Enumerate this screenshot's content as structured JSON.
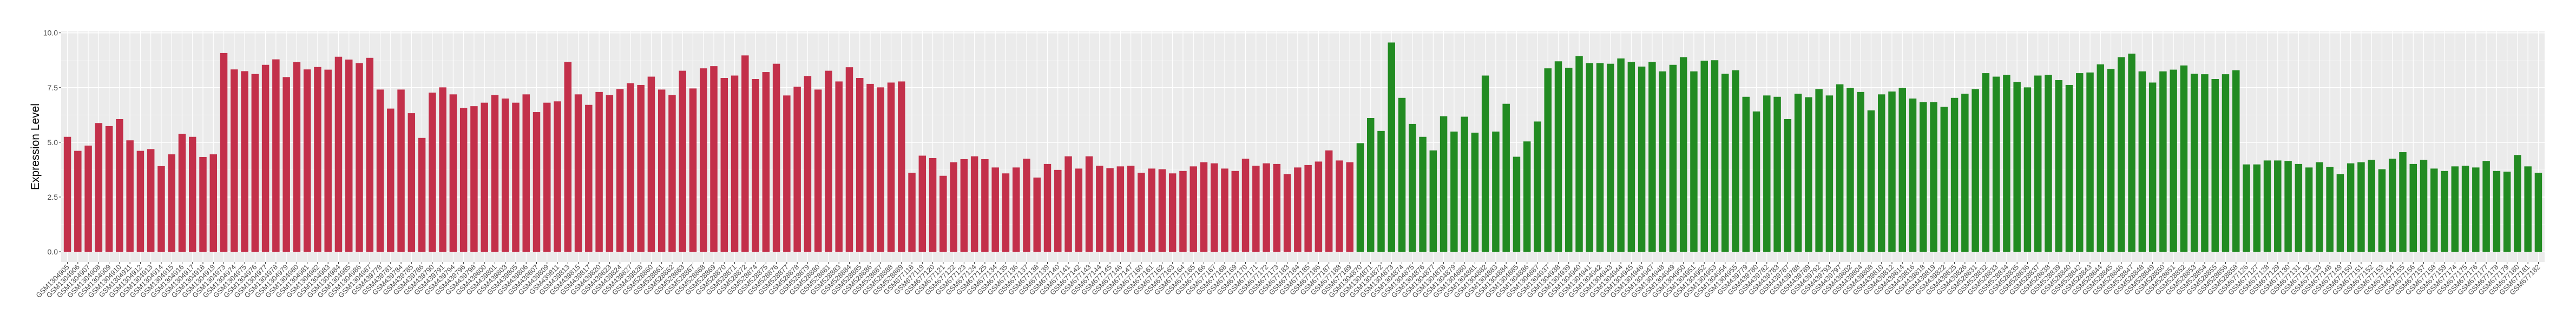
{
  "chart_data": {
    "type": "bar",
    "title": "",
    "xlabel": "",
    "ylabel": "Expression Level",
    "ylim": [
      0,
      10
    ],
    "yticks": [
      "0.0",
      "2.5",
      "5.0",
      "7.5",
      "10.0"
    ],
    "ytick_values": [
      0,
      2.5,
      5,
      7.5,
      10
    ],
    "grid": true,
    "legend": "none",
    "panel_background": "#EBEBEB",
    "groups": [
      {
        "color": "#C3304A",
        "categories": [
          "GSM1304905",
          "GSM1304906",
          "GSM1304907",
          "GSM1304908",
          "GSM1304909",
          "GSM1304910",
          "GSM1304911",
          "GSM1304912",
          "GSM1304913",
          "GSM1304914",
          "GSM1304915",
          "GSM1304916",
          "GSM1304917",
          "GSM1304918",
          "GSM1304919",
          "GSM1304973",
          "GSM1304974",
          "GSM1304975",
          "GSM1304976",
          "GSM1304977",
          "GSM1304978",
          "GSM1304979",
          "GSM1304980",
          "GSM1304981",
          "GSM1304982",
          "GSM1304983",
          "GSM1304984",
          "GSM1304985",
          "GSM1304986",
          "GSM1304987",
          "GSM439778",
          "GSM439781",
          "GSM439784",
          "GSM439785",
          "GSM439786",
          "GSM439790",
          "GSM439791",
          "GSM439794",
          "GSM439796",
          "GSM439798",
          "GSM439800",
          "GSM439801",
          "GSM439803",
          "GSM439805",
          "GSM439806",
          "GSM439807",
          "GSM439809",
          "GSM439811",
          "GSM439813",
          "GSM439815",
          "GSM439817",
          "GSM439820",
          "GSM439823",
          "GSM439824",
          "GSM439827",
          "GSM439828",
          "GSM528860",
          "GSM528861",
          "GSM528862",
          "GSM528863",
          "GSM528867",
          "GSM528868",
          "GSM528869",
          "GSM528870",
          "GSM528871",
          "GSM528872",
          "GSM528874",
          "GSM528875",
          "GSM528876",
          "GSM528877",
          "GSM528878",
          "GSM528879",
          "GSM528880",
          "GSM528881",
          "GSM528883",
          "GSM528884",
          "GSM528885",
          "GSM528886",
          "GSM528887",
          "GSM528888",
          "GSM528889",
          "GSM677118",
          "GSM677119",
          "GSM677120",
          "GSM677121",
          "GSM677122",
          "GSM677123",
          "GSM677124",
          "GSM677125",
          "GSM677134",
          "GSM677135",
          "GSM677136",
          "GSM677137",
          "GSM677138",
          "GSM677139",
          "GSM677140",
          "GSM677141",
          "GSM677142",
          "GSM677143",
          "GSM677144",
          "GSM677145",
          "GSM677146",
          "GSM677147",
          "GSM677160",
          "GSM677161",
          "GSM677162",
          "GSM677163",
          "GSM677164",
          "GSM677165",
          "GSM677166",
          "GSM677167",
          "GSM677168",
          "GSM677169",
          "GSM677170",
          "GSM677171",
          "GSM677172",
          "GSM677173",
          "GSM677183",
          "GSM677184",
          "GSM677185",
          "GSM677186",
          "GSM677187",
          "GSM677188",
          "GSM677189"
        ],
        "values": [
          5.25,
          4.61,
          4.85,
          5.88,
          5.74,
          6.06,
          5.09,
          4.61,
          4.69,
          3.91,
          4.45,
          5.39,
          5.25,
          4.33,
          4.45,
          9.08,
          8.33,
          8.25,
          8.12,
          8.54,
          8.79,
          7.98,
          8.66,
          8.33,
          8.44,
          8.32,
          8.91,
          8.78,
          8.62,
          8.86,
          7.41,
          6.54,
          7.41,
          6.33,
          5.2,
          7.27,
          7.51,
          7.19,
          6.57,
          6.65,
          6.81,
          7.16,
          7.0,
          6.81,
          7.19,
          6.38,
          6.81,
          6.87,
          8.67,
          7.19,
          6.71,
          7.3,
          7.16,
          7.43,
          7.7,
          7.62,
          8.0,
          7.41,
          7.16,
          8.27,
          7.46,
          8.38,
          8.48,
          7.94,
          8.05,
          8.97,
          7.89,
          8.21,
          8.59,
          7.14,
          7.54,
          8.03,
          7.41,
          8.27,
          7.78,
          8.43,
          7.94,
          7.67,
          7.51,
          7.73,
          7.78,
          3.61,
          4.39,
          4.28,
          3.47,
          4.09,
          4.23,
          4.36,
          4.23,
          3.85,
          3.58,
          3.85,
          4.25,
          3.39,
          4.01,
          3.74,
          4.36,
          3.8,
          4.36,
          3.93,
          3.82,
          3.9,
          3.93,
          3.61,
          3.8,
          3.77,
          3.58,
          3.69,
          3.9,
          4.09,
          4.04,
          3.8,
          3.69,
          4.25,
          3.93,
          4.04,
          4.01,
          3.55,
          3.85,
          3.96,
          4.12,
          4.63,
          4.17,
          4.09
        ]
      },
      {
        "color": "#228B22",
        "categories": [
          "GSM1304870",
          "GSM1304871",
          "GSM1304872",
          "GSM1304873",
          "GSM1304874",
          "GSM1304875",
          "GSM1304876",
          "GSM1304877",
          "GSM1304878",
          "GSM1304879",
          "GSM1304880",
          "GSM1304881",
          "GSM1304882",
          "GSM1304883",
          "GSM1304884",
          "GSM1304885",
          "GSM1304886",
          "GSM1304887",
          "GSM1304937",
          "GSM1304938",
          "GSM1304939",
          "GSM1304940",
          "GSM1304941",
          "GSM1304942",
          "GSM1304943",
          "GSM1304944",
          "GSM1304945",
          "GSM1304946",
          "GSM1304947",
          "GSM1304948",
          "GSM1304949",
          "GSM1304950",
          "GSM1304951",
          "GSM1304952",
          "GSM1304953",
          "GSM1304954",
          "GSM1304955",
          "GSM439779",
          "GSM439780",
          "GSM439782",
          "GSM439783",
          "GSM439787",
          "GSM439788",
          "GSM439789",
          "GSM439792",
          "GSM439793",
          "GSM439797",
          "GSM439802",
          "GSM439804",
          "GSM439808",
          "GSM439810",
          "GSM439812",
          "GSM439814",
          "GSM439816",
          "GSM439818",
          "GSM439819",
          "GSM439822",
          "GSM439825",
          "GSM439826",
          "GSM528831",
          "GSM528832",
          "GSM528833",
          "GSM528834",
          "GSM528835",
          "GSM528836",
          "GSM528837",
          "GSM528838",
          "GSM528839",
          "GSM528840",
          "GSM528842",
          "GSM528843",
          "GSM528844",
          "GSM528845",
          "GSM528846",
          "GSM528847",
          "GSM528848",
          "GSM528849",
          "GSM528850",
          "GSM528851",
          "GSM528852",
          "GSM528853",
          "GSM528854",
          "GSM528855",
          "GSM528856",
          "GSM528858",
          "GSM677126",
          "GSM677127",
          "GSM677128",
          "GSM677129",
          "GSM677130",
          "GSM677131",
          "GSM677132",
          "GSM677133",
          "GSM677148",
          "GSM677149",
          "GSM677150",
          "GSM677151",
          "GSM677152",
          "GSM677153",
          "GSM677154",
          "GSM677155",
          "GSM677156",
          "GSM677157",
          "GSM677158",
          "GSM677159",
          "GSM677174",
          "GSM677175",
          "GSM677176",
          "GSM677177",
          "GSM677178",
          "GSM677179",
          "GSM677180",
          "GSM677181",
          "GSM677182"
        ],
        "values": [
          4.96,
          6.11,
          5.52,
          9.56,
          7.03,
          5.84,
          5.25,
          4.63,
          6.19,
          5.49,
          6.17,
          5.44,
          8.05,
          5.49,
          6.76,
          4.34,
          5.04,
          5.95,
          8.38,
          8.7,
          8.4,
          8.94,
          8.62,
          8.62,
          8.59,
          8.83,
          8.67,
          8.46,
          8.67,
          8.24,
          8.54,
          8.89,
          8.24,
          8.73,
          8.75,
          8.13,
          8.29,
          7.08,
          6.41,
          7.14,
          7.08,
          6.06,
          7.22,
          7.06,
          7.43,
          7.14,
          7.65,
          7.49,
          7.3,
          6.46,
          7.19,
          7.32,
          7.49,
          7.0,
          6.84,
          6.84,
          6.62,
          7.03,
          7.22,
          7.43,
          8.16,
          8.0,
          8.08,
          7.76,
          7.51,
          8.05,
          8.08,
          7.84,
          7.62,
          8.16,
          8.19,
          8.56,
          8.35,
          8.89,
          9.05,
          8.24,
          7.73,
          8.24,
          8.32,
          8.51,
          8.13,
          8.11,
          7.89,
          8.11,
          8.29,
          3.99,
          3.99,
          4.17,
          4.17,
          4.15,
          4.01,
          3.85,
          4.09,
          3.88,
          3.55,
          4.04,
          4.09,
          4.2,
          3.77,
          4.25,
          4.55,
          4.01,
          4.2,
          3.8,
          3.69,
          3.9,
          3.93,
          3.85,
          4.15,
          3.69,
          3.66,
          4.42,
          3.9,
          3.61
        ]
      }
    ]
  }
}
